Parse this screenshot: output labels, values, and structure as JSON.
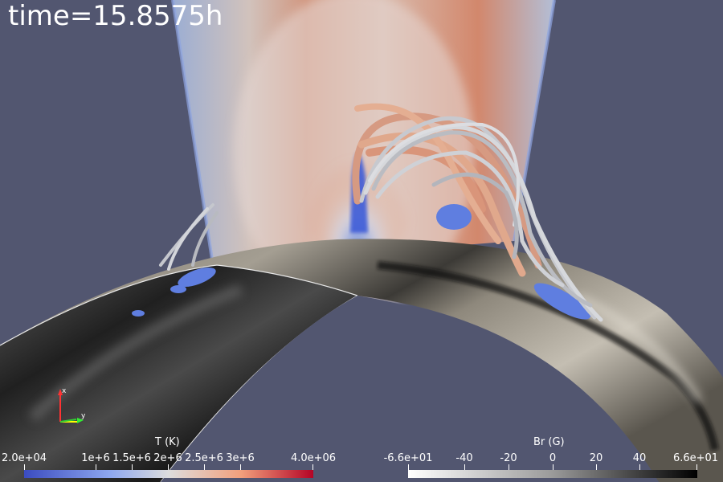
{
  "title": {
    "time": "time=15.8575h"
  },
  "colorbars": {
    "temperature": {
      "title": "T (K)",
      "ticks": [
        "2.0e+04",
        "1e+6",
        "1.5e+6",
        "2e+6",
        "2.5e+6",
        "3e+6",
        "4.0e+06"
      ],
      "colors": [
        "#3b4cc0",
        "#dddddd",
        "#b40426"
      ]
    },
    "radial_field": {
      "title": "Br (G)",
      "ticks": [
        "-6.6e+01",
        "-40",
        "-20",
        "0",
        "20",
        "40",
        "6.6e+01"
      ],
      "colors": [
        "#ffffff",
        "#000000"
      ]
    }
  },
  "axes": {
    "x": "x",
    "y": "y"
  }
}
